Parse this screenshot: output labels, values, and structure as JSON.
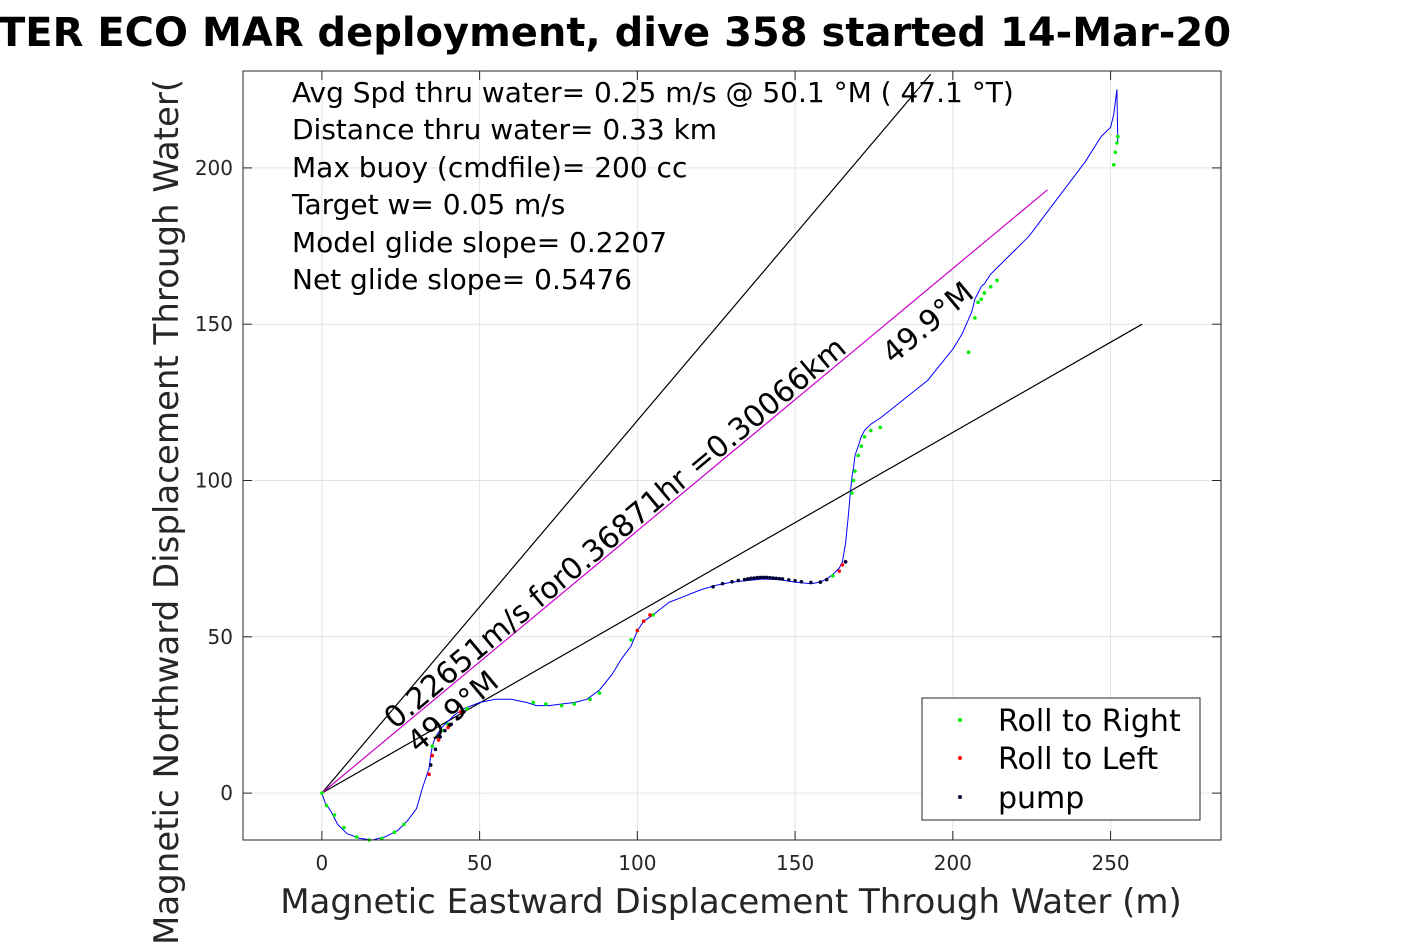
{
  "chart_data": {
    "type": "line",
    "title": "TER ECO MAR deployment, dive 358 started 14-Mar-20",
    "xlabel": "Magnetic Eastward Displacement Through Water (m)",
    "ylabel": "Magnetic Northward Displacement Through Water(",
    "xlim": [
      -25,
      285
    ],
    "ylim": [
      -15,
      231
    ],
    "xticks": [
      0,
      50,
      100,
      150,
      200,
      250
    ],
    "yticks": [
      0,
      50,
      100,
      150,
      200
    ],
    "grid": true,
    "info_lines": [
      "Avg Spd thru water=  0.25 m/s @  50.1 °M ( 47.1 °T)",
      "Distance thru water=  0.33 km",
      "Max buoy (cmdfile)= 200 cc",
      "Target w= 0.05 m/s",
      "Model glide slope= 0.2207",
      "Net glide slope= 0.5476"
    ],
    "annotations": [
      "0.22651m/s for0.36871hr =0.30066km",
      "49.9°M",
      "49.9°M"
    ],
    "reference_lines": [
      {
        "x": [
          0,
          193
        ],
        "y": [
          0,
          230
        ],
        "color": "#000000"
      },
      {
        "x": [
          0,
          260
        ],
        "y": [
          0,
          150
        ],
        "color": "#000000"
      },
      {
        "x": [
          0,
          230
        ],
        "y": [
          0,
          193
        ],
        "color": "#cc00cc"
      }
    ],
    "series": [
      {
        "color": "#0000ff",
        "x": [
          0,
          1,
          3,
          5,
          8,
          12,
          16,
          20,
          24,
          27,
          30,
          32,
          33,
          34,
          34.5,
          35,
          36,
          38,
          40,
          42,
          45,
          50,
          55,
          60,
          65,
          68,
          72,
          76,
          80,
          84,
          88,
          92,
          95,
          98,
          100,
          102,
          105,
          110,
          115,
          120,
          125,
          130,
          135,
          140,
          145,
          150,
          155,
          158,
          160,
          162,
          164,
          165,
          166,
          167,
          167.5,
          168,
          168.5,
          169,
          170,
          171,
          172,
          174,
          177,
          182,
          187,
          192,
          196,
          200,
          203,
          206,
          207,
          208,
          209,
          210,
          212,
          214,
          218,
          224,
          230,
          236,
          242,
          247,
          250,
          251,
          251.5,
          252,
          252.3
        ],
        "y": [
          0,
          -3,
          -6,
          -10,
          -13,
          -14.5,
          -15,
          -14,
          -12,
          -9,
          -5,
          2,
          5,
          8,
          12,
          15,
          18,
          21,
          23,
          25,
          27,
          29,
          30,
          30,
          29,
          28,
          28,
          28.5,
          29,
          30,
          33,
          38,
          43,
          47,
          52,
          55,
          57,
          61,
          63,
          65,
          66.5,
          67.5,
          68,
          68.5,
          68.3,
          67.5,
          67,
          67.5,
          68.5,
          70,
          72,
          74,
          80,
          90,
          96,
          101,
          104,
          108,
          111,
          114,
          116,
          118,
          120,
          124,
          128,
          132,
          137,
          142,
          147,
          154,
          158,
          160,
          162,
          163,
          166,
          168,
          172,
          178,
          186,
          194,
          202,
          210,
          213,
          217,
          221,
          225,
          208
        ]
      }
    ],
    "markers": [
      {
        "name": "Roll to Right",
        "color": "#00ee00",
        "x": [
          0,
          1.5,
          4,
          7,
          11,
          15,
          19,
          23,
          26,
          35,
          36.5,
          38,
          40,
          46,
          67,
          71,
          76,
          80,
          85,
          88,
          98,
          100,
          102,
          105,
          158,
          162,
          168,
          168.5,
          169,
          170,
          171,
          172,
          174,
          177,
          205,
          207,
          208,
          209,
          210,
          212,
          214,
          251,
          251.5,
          252,
          252.3
        ],
        "y": [
          0,
          -4,
          -7,
          -11,
          -14,
          -15,
          -14.5,
          -12.5,
          -10,
          15,
          18,
          20,
          22,
          27,
          29,
          28.5,
          28,
          28.5,
          30,
          32,
          49,
          52,
          55,
          57,
          67.5,
          69.5,
          96,
          100,
          103,
          108,
          111,
          114,
          116,
          117,
          141,
          152,
          157,
          158,
          160,
          162,
          164,
          201,
          205,
          208,
          210
        ]
      },
      {
        "name": "Roll to Left",
        "color": "#ff0000",
        "x": [
          34,
          35,
          37,
          40,
          44,
          100,
          102,
          104,
          164,
          165,
          166
        ],
        "y": [
          6,
          12,
          17,
          21,
          26,
          52,
          55,
          57,
          71,
          73,
          74
        ]
      },
      {
        "name": "pump",
        "color": "#000033",
        "x": [
          34.5,
          36,
          37.5,
          39,
          41,
          43,
          45,
          124,
          127,
          130,
          132,
          134,
          135,
          136,
          137,
          138,
          139,
          140,
          141,
          142,
          143,
          144,
          145,
          146,
          148,
          150,
          152,
          155,
          158,
          160,
          166
        ],
        "y": [
          9,
          14,
          18,
          20,
          22,
          24,
          26,
          66,
          67,
          67.6,
          68,
          68.3,
          68.5,
          68.7,
          68.8,
          68.9,
          69,
          69,
          69,
          68.9,
          68.8,
          68.7,
          68.6,
          68.5,
          68.2,
          67.9,
          67.6,
          67.4,
          67.5,
          68.3,
          74
        ]
      }
    ],
    "legend": {
      "position": "bottom-right",
      "entries": [
        "Roll to Right",
        "Roll to Left",
        "pump"
      ]
    }
  }
}
